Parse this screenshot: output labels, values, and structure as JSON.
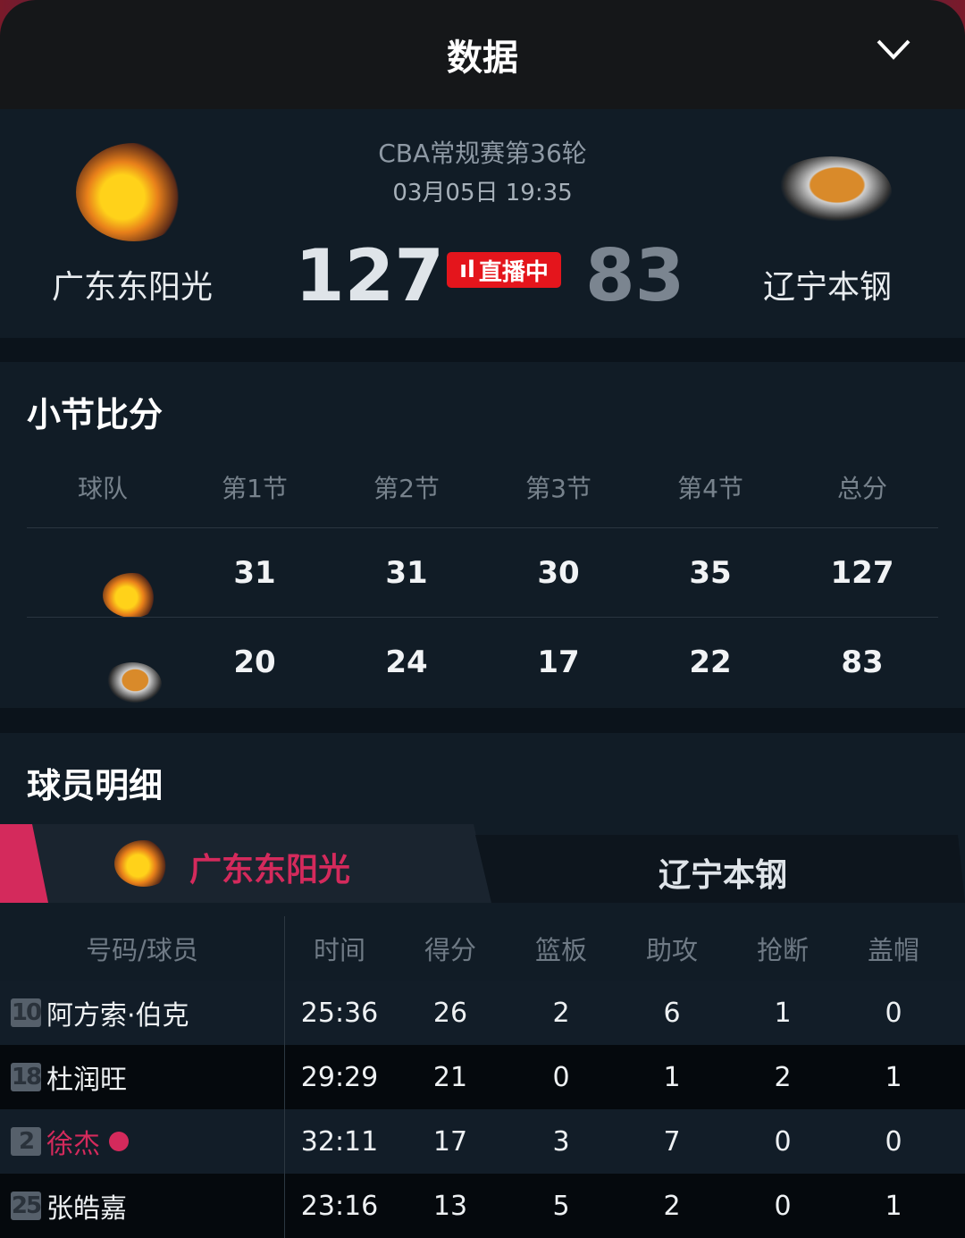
{
  "header": {
    "title": "数据",
    "collapse_icon": "chevron-down-icon"
  },
  "match": {
    "league": "CBA常规赛第36轮",
    "datetime": "03月05日 19:35",
    "status": "直播中",
    "home": {
      "name": "广东东阳光",
      "score": "127"
    },
    "away": {
      "name": "辽宁本钢",
      "score": "83"
    }
  },
  "quarters": {
    "title": "小节比分",
    "headers": [
      "球队",
      "第1节",
      "第2节",
      "第3节",
      "第4节",
      "总分"
    ],
    "rows": [
      {
        "team": "广东东阳光",
        "values": [
          "31",
          "31",
          "30",
          "35",
          "127"
        ]
      },
      {
        "team": "辽宁本钢",
        "values": [
          "20",
          "24",
          "17",
          "22",
          "83"
        ]
      }
    ]
  },
  "players": {
    "title": "球员明细",
    "tabs": [
      "广东东阳光",
      "辽宁本钢"
    ],
    "active_tab": 0,
    "headers": [
      "号码/球员",
      "时间",
      "得分",
      "篮板",
      "助攻",
      "抢断",
      "盖帽"
    ],
    "rows": [
      {
        "num": "10",
        "name": "阿方索·伯克",
        "cells": [
          "25:36",
          "26",
          "2",
          "6",
          "1",
          "0"
        ]
      },
      {
        "num": "18",
        "name": "杜润旺",
        "cells": [
          "29:29",
          "21",
          "0",
          "1",
          "2",
          "1"
        ]
      },
      {
        "num": "2",
        "name": "徐杰",
        "cells": [
          "32:11",
          "17",
          "3",
          "7",
          "0",
          "0"
        ],
        "highlight": true
      },
      {
        "num": "25",
        "name": "张皓嘉",
        "cells": [
          "23:16",
          "13",
          "5",
          "2",
          "0",
          "1"
        ]
      }
    ]
  },
  "colors": {
    "accent": "#d42a5c",
    "live": "#e4151c"
  }
}
